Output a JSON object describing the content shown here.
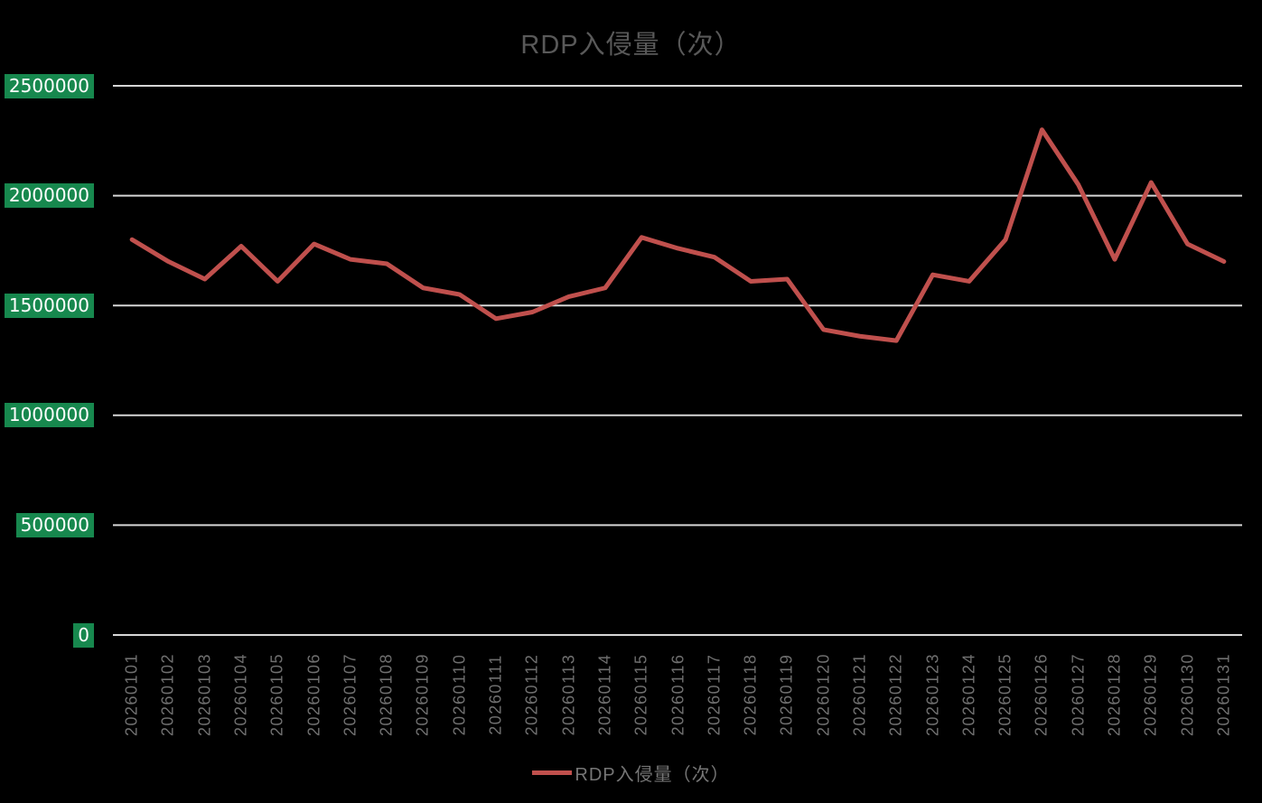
{
  "title": "RDP入侵量（次）",
  "colors": {
    "background": "#000000",
    "series_line": "#c0504d",
    "gridline": "#d6d6d6",
    "title_text": "#595959",
    "axis_text": "#6f6f6f",
    "y_label_bg": "#17884e",
    "y_label_text": "#ffffff",
    "legend_text": "#767676"
  },
  "chart_data": {
    "type": "line",
    "title": "RDP入侵量（次）",
    "categories": [
      "20260101",
      "20260102",
      "20260103",
      "20260104",
      "20260105",
      "20260106",
      "20260107",
      "20260108",
      "20260109",
      "20260110",
      "20260111",
      "20260112",
      "20260113",
      "20260114",
      "20260115",
      "20260116",
      "20260117",
      "20260118",
      "20260119",
      "20260120",
      "20260121",
      "20260122",
      "20260123",
      "20260124",
      "20260125",
      "20260126",
      "20260127",
      "20260128",
      "20260129",
      "20260130",
      "20260131"
    ],
    "series": [
      {
        "name": "RDP入侵量（次）",
        "values": [
          1800000,
          1700000,
          1620000,
          1770000,
          1610000,
          1780000,
          1710000,
          1690000,
          1580000,
          1550000,
          1440000,
          1470000,
          1540000,
          1580000,
          1810000,
          1760000,
          1720000,
          1610000,
          1620000,
          1390000,
          1360000,
          1340000,
          1640000,
          1610000,
          1800000,
          2300000,
          2050000,
          1710000,
          2060000,
          1780000,
          1700000
        ]
      }
    ],
    "y_ticks": [
      0,
      500000,
      1000000,
      1500000,
      2000000,
      2500000
    ],
    "ylim": [
      0,
      2500000
    ],
    "xlabel": "",
    "ylabel": "",
    "grid": "horizontal",
    "legend_position": "bottom"
  }
}
